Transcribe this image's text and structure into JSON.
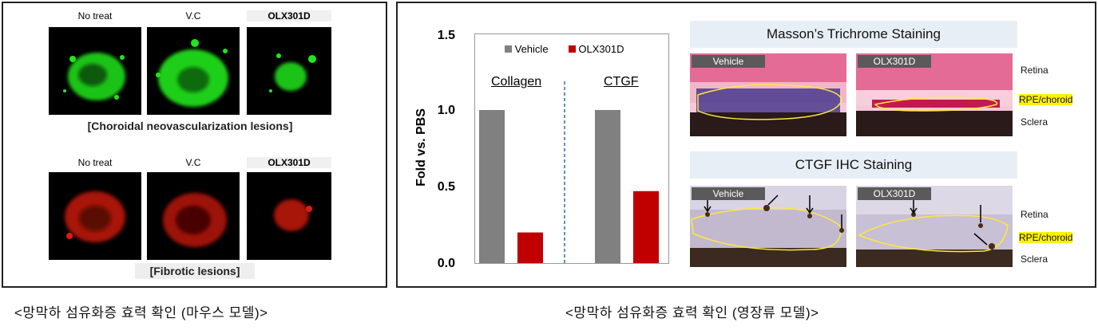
{
  "mouse_panel": {
    "top_labels": [
      "No treat",
      "V.C",
      "OLX301D"
    ],
    "top_caption": "[Choroidal neovascularization lesions]",
    "bottom_labels": [
      "No treat",
      "V.C",
      "OLX301D"
    ],
    "bottom_caption": "[Fibrotic lesions]",
    "green_color": "#22e61a",
    "red_color": "#e01a10"
  },
  "chart": {
    "ylabel": "Fold vs. PBS",
    "yticks": [
      "1.5",
      "1.0",
      "0.5",
      "0.0"
    ],
    "legend": [
      {
        "label": "Vehicle",
        "color": "#808080"
      },
      {
        "label": "OLX301D",
        "color": "#c00000"
      }
    ],
    "group_titles": [
      "Collagen",
      "CTGF"
    ]
  },
  "chart_data": {
    "type": "bar",
    "categories": [
      "Collagen",
      "CTGF"
    ],
    "series": [
      {
        "name": "Vehicle",
        "values": [
          1.0,
          1.0
        ]
      },
      {
        "name": "OLX301D",
        "values": [
          0.2,
          0.47
        ]
      }
    ],
    "xlabel": "",
    "ylabel": "Fold vs. PBS",
    "ylim": [
      0,
      1.5
    ],
    "legend_position": "top"
  },
  "staining": {
    "masson_title": "Masson’s Trichrome Staining",
    "ctgf_title": "CTGF IHC Staining",
    "tag_vehicle": "Vehicle",
    "tag_olx": "OLX301D",
    "side_labels": [
      "Retina",
      "RPE/choroid",
      "Sclera"
    ]
  },
  "captions": {
    "left": "<망막하 섬유화증 효력 확인 (마우스 모델)>",
    "right": "<망막하 섬유화증 효력 확인 (영장류 모델)>"
  }
}
